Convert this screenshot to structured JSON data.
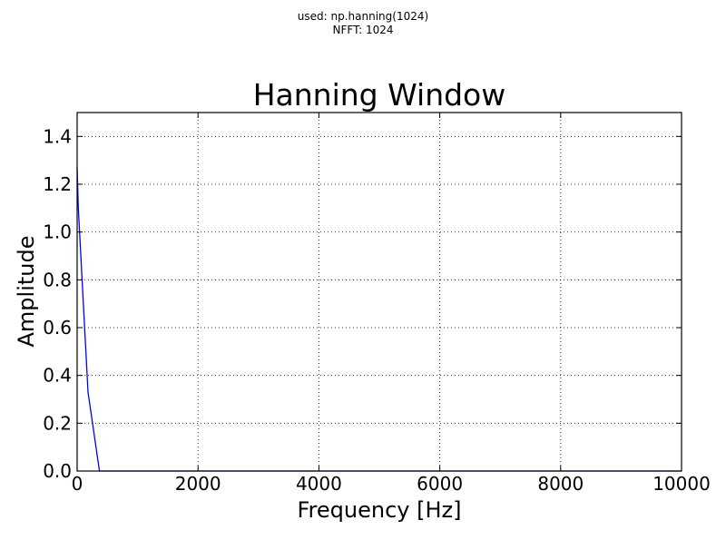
{
  "figure": {
    "suptitle_line1": "used: np.hanning(1024)",
    "suptitle_line2": "NFFT: 1024"
  },
  "chart_data": {
    "type": "line",
    "title": "Hanning Window",
    "xlabel": "Frequency [Hz]",
    "ylabel": "Amplitude",
    "xlim": [
      0,
      10000
    ],
    "ylim": [
      0,
      1.5
    ],
    "grid": true,
    "xticks": [
      0,
      2000,
      4000,
      6000,
      8000,
      10000
    ],
    "xtick_labels": [
      "0",
      "2000",
      "4000",
      "6000",
      "8000",
      "10000"
    ],
    "yticks": [
      0.0,
      0.2,
      0.4,
      0.6,
      0.8,
      1.0,
      1.2,
      1.4
    ],
    "ytick_labels": [
      "0.0",
      "0.2",
      "0.4",
      "0.6",
      "0.8",
      "1.0",
      "1.2",
      "1.4"
    ],
    "series": [
      {
        "color": "#0000ff",
        "x": [
          0,
          20,
          180,
          370,
          450,
          1000,
          2000,
          4000,
          6000,
          8000,
          10000
        ],
        "y": [
          1.27,
          1.1,
          0.33,
          0.0,
          0.0,
          0.0,
          0.0,
          0.0,
          0.0,
          0.0,
          0.0
        ]
      }
    ]
  }
}
